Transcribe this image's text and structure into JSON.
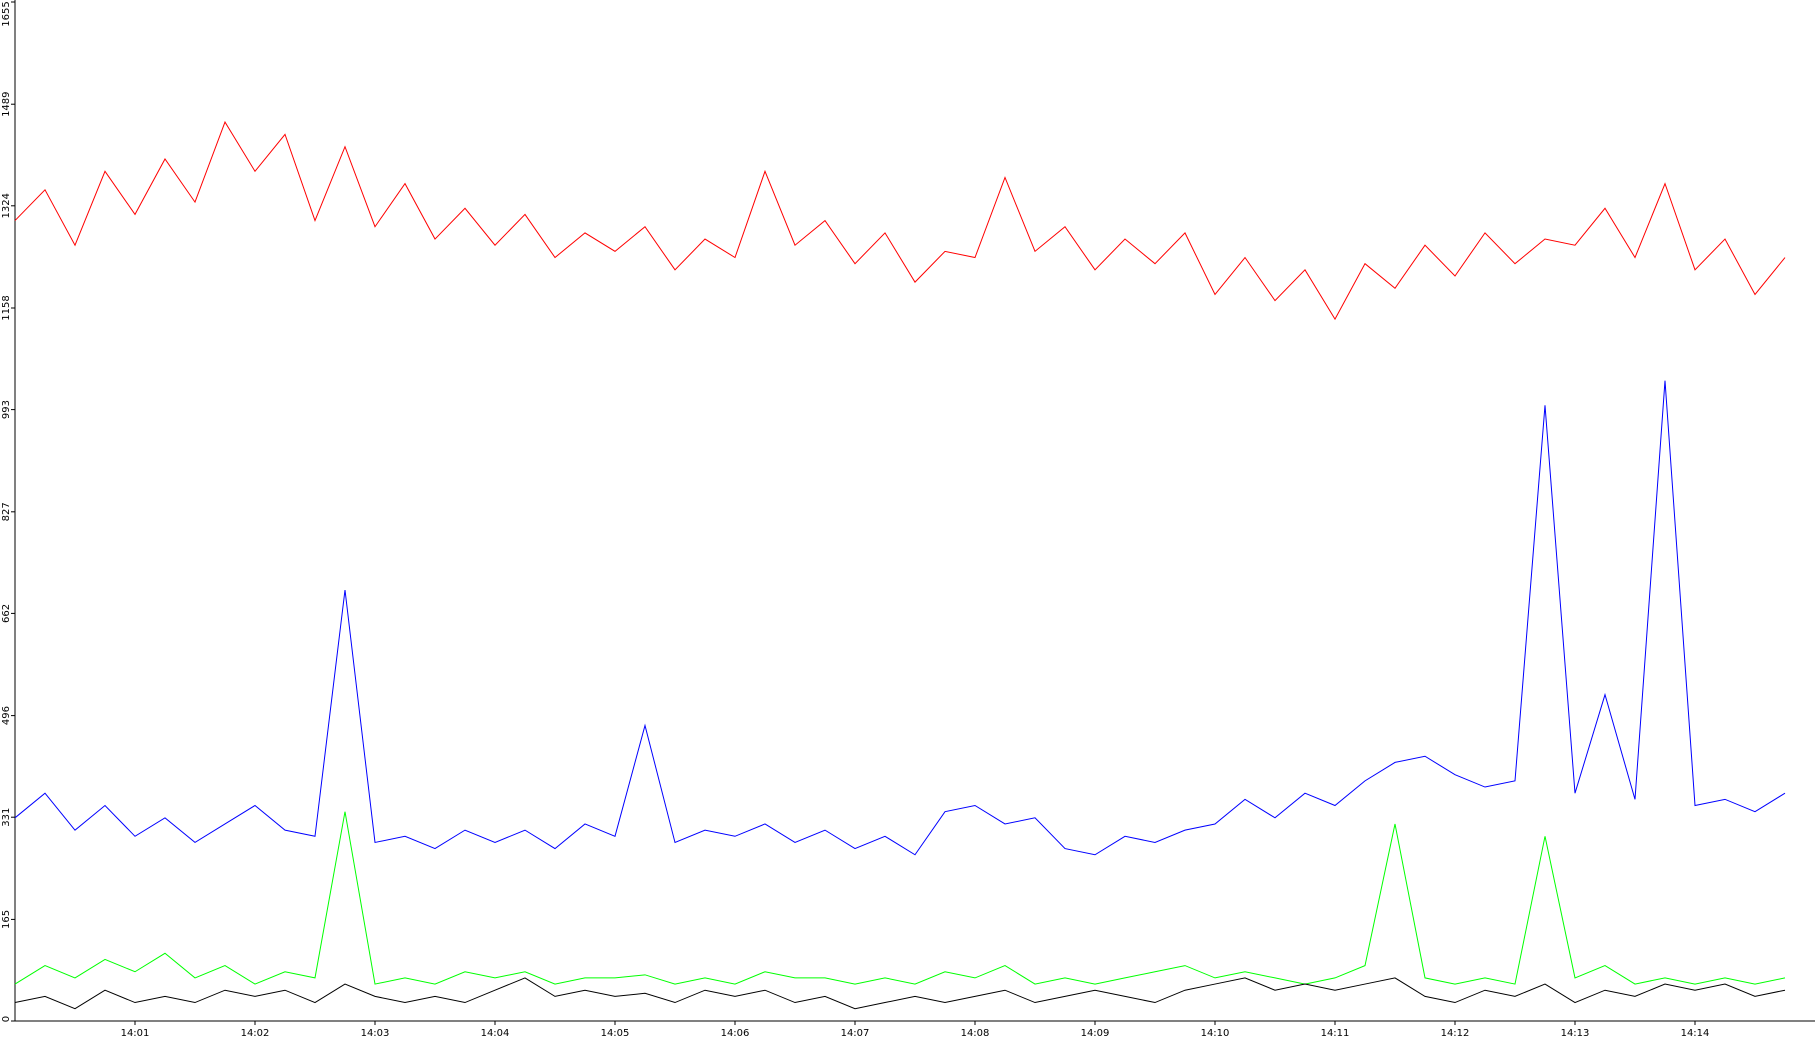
{
  "chart_data": {
    "type": "line",
    "categories": [
      null,
      null,
      null,
      null,
      "14:01",
      null,
      null,
      null,
      "14:02",
      null,
      null,
      null,
      "14:03",
      null,
      null,
      null,
      "14:04",
      null,
      null,
      null,
      "14:05",
      null,
      null,
      null,
      "14:06",
      null,
      null,
      null,
      "14:07",
      null,
      null,
      null,
      "14:08",
      null,
      null,
      null,
      "14:09",
      null,
      null,
      null,
      "14:10",
      null,
      null,
      null,
      "14:11",
      null,
      null,
      null,
      "14:12",
      null,
      null,
      null,
      "14:13",
      null,
      null,
      null,
      "14:14",
      null,
      null,
      null
    ],
    "ylim": [
      0,
      1655
    ],
    "yticks": [
      0,
      165,
      331,
      496,
      662,
      827,
      993,
      1158,
      1324,
      1489,
      1655
    ],
    "grid": false,
    "series": [
      {
        "color": "#ff0000",
        "values": [
          1300,
          1350,
          1260,
          1380,
          1310,
          1400,
          1330,
          1460,
          1380,
          1440,
          1300,
          1420,
          1290,
          1360,
          1270,
          1320,
          1260,
          1310,
          1240,
          1280,
          1250,
          1290,
          1220,
          1270,
          1240,
          1380,
          1260,
          1300,
          1230,
          1280,
          1200,
          1250,
          1240,
          1370,
          1250,
          1290,
          1220,
          1270,
          1230,
          1280,
          1180,
          1240,
          1170,
          1220,
          1140,
          1230,
          1190,
          1260,
          1210,
          1280,
          1230,
          1270,
          1260,
          1320,
          1240,
          1360,
          1220,
          1270,
          1180,
          1240
        ]
      },
      {
        "color": "#0000ff",
        "values": [
          330,
          370,
          310,
          350,
          300,
          330,
          290,
          320,
          350,
          310,
          300,
          700,
          290,
          300,
          280,
          310,
          290,
          310,
          280,
          320,
          300,
          480,
          290,
          310,
          300,
          320,
          290,
          310,
          280,
          300,
          270,
          340,
          350,
          320,
          330,
          280,
          270,
          300,
          290,
          310,
          320,
          360,
          330,
          370,
          350,
          390,
          420,
          430,
          400,
          380,
          390,
          1000,
          370,
          530,
          360,
          1040,
          350,
          360,
          340,
          370
        ]
      },
      {
        "color": "#00ff00",
        "values": [
          60,
          90,
          70,
          100,
          80,
          110,
          70,
          90,
          60,
          80,
          70,
          340,
          60,
          70,
          60,
          80,
          70,
          80,
          60,
          70,
          70,
          75,
          60,
          70,
          60,
          80,
          70,
          70,
          60,
          70,
          60,
          80,
          70,
          90,
          60,
          70,
          60,
          70,
          80,
          90,
          70,
          80,
          70,
          60,
          70,
          90,
          320,
          70,
          60,
          70,
          60,
          300,
          70,
          90,
          60,
          70,
          60,
          70,
          60,
          70
        ]
      },
      {
        "color": "#000000",
        "values": [
          30,
          40,
          20,
          50,
          30,
          40,
          30,
          50,
          40,
          50,
          30,
          60,
          40,
          30,
          40,
          30,
          50,
          70,
          40,
          50,
          40,
          45,
          30,
          50,
          40,
          50,
          30,
          40,
          20,
          30,
          40,
          30,
          40,
          50,
          30,
          40,
          50,
          40,
          30,
          50,
          60,
          70,
          50,
          60,
          50,
          60,
          70,
          40,
          30,
          50,
          40,
          60,
          30,
          50,
          40,
          60,
          50,
          60,
          40,
          50
        ]
      }
    ]
  }
}
